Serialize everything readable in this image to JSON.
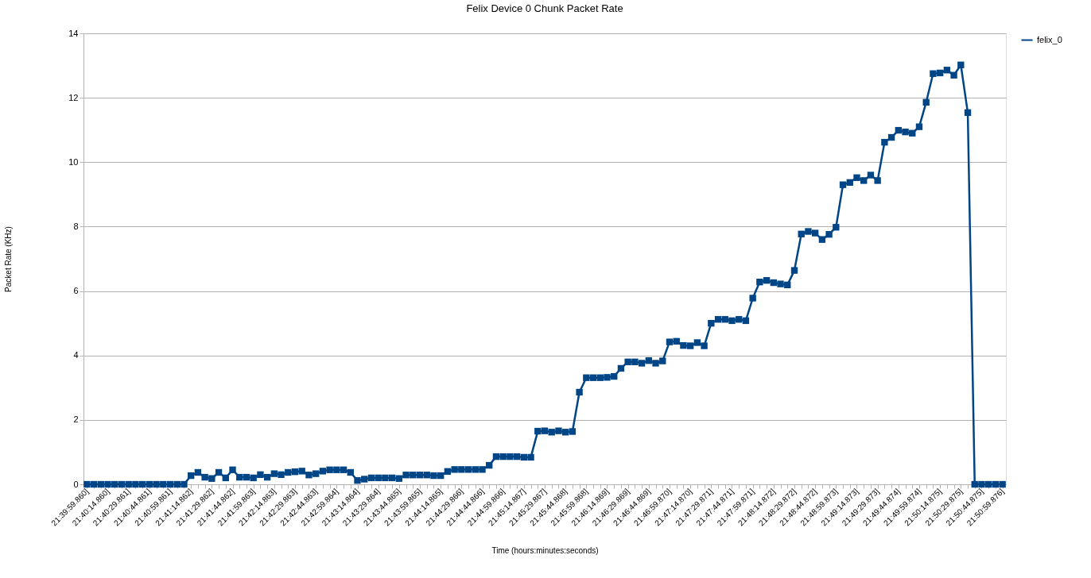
{
  "chart_data": {
    "type": "line",
    "title": "Felix Device 0 Chunk Packet Rate",
    "xlabel": "Time (hours:minutes:seconds)",
    "ylabel": "Packet Rate (KHz)",
    "categories": [
      "21:39:59.860]",
      null,
      null,
      "21:40:14.860]",
      null,
      null,
      "21:40:29.861]",
      null,
      null,
      "21:40:44.861]",
      null,
      null,
      "21:40:59.861]",
      null,
      null,
      "21:41:14.862]",
      null,
      null,
      "21:41:29.862]",
      null,
      null,
      "21:41:44.862]",
      null,
      null,
      "21:41:59.863]",
      null,
      null,
      "21:42:14.863]",
      null,
      null,
      "21:42:29.863]",
      null,
      null,
      "21:42:44.863]",
      null,
      null,
      "21:42:59.864]",
      null,
      null,
      "21:43:14.864]",
      null,
      null,
      "21:43:29.864]",
      null,
      null,
      "21:43:44.865]",
      null,
      null,
      "21:43:59.865]",
      null,
      null,
      "21:44:14.865]",
      null,
      null,
      "21:44:29.866]",
      null,
      null,
      "21:44:44.866]",
      null,
      null,
      "21:44:59.866]",
      null,
      null,
      "21:45:14.867]",
      null,
      null,
      "21:45:29.867]",
      null,
      null,
      "21:45:44.868]",
      null,
      null,
      "21:45:59.868]",
      null,
      null,
      "21:46:14.869]",
      null,
      null,
      "21:46:29.869]",
      null,
      null,
      "21:46:44.869]",
      null,
      null,
      "21:46:59.870]",
      null,
      null,
      "21:47:14.870]",
      null,
      null,
      "21:47:29.871]",
      null,
      null,
      "21:47:44.871]",
      null,
      null,
      "21:47:59.871]",
      null,
      null,
      "21:48:14.872]",
      null,
      null,
      "21:48:29.872]",
      null,
      null,
      "21:48:44.872]",
      null,
      null,
      "21:48:59.873]",
      null,
      null,
      "21:49:14.873]",
      null,
      null,
      "21:49:29.873]",
      null,
      null,
      "21:49:44.874]",
      null,
      null,
      "21:49:59.874]",
      null,
      null,
      "21:50:14.875]",
      null,
      null,
      "21:50:29.875]",
      null,
      null,
      "21:50:44.875]",
      null,
      null,
      "21:50:59.876]"
    ],
    "series": [
      {
        "name": "felix_0",
        "color": "#004586",
        "values": [
          0,
          0,
          0,
          0,
          0,
          0,
          0,
          0,
          0,
          0,
          0,
          0,
          0,
          0,
          0,
          0.27,
          0.37,
          0.22,
          0.18,
          0.37,
          0.2,
          0.45,
          0.22,
          0.22,
          0.2,
          0.3,
          0.22,
          0.33,
          0.3,
          0.37,
          0.39,
          0.41,
          0.29,
          0.33,
          0.41,
          0.45,
          0.45,
          0.45,
          0.37,
          0.12,
          0.16,
          0.2,
          0.2,
          0.2,
          0.2,
          0.18,
          0.29,
          0.29,
          0.29,
          0.29,
          0.27,
          0.27,
          0.4,
          0.46,
          0.46,
          0.46,
          0.46,
          0.46,
          0.59,
          0.86,
          0.86,
          0.86,
          0.86,
          0.84,
          0.84,
          1.65,
          1.66,
          1.62,
          1.66,
          1.62,
          1.64,
          2.86,
          3.31,
          3.31,
          3.31,
          3.32,
          3.35,
          3.6,
          3.8,
          3.8,
          3.76,
          3.84,
          3.76,
          3.83,
          4.42,
          4.44,
          4.31,
          4.3,
          4.4,
          4.3,
          5.0,
          5.12,
          5.12,
          5.08,
          5.12,
          5.08,
          5.78,
          6.28,
          6.33,
          6.26,
          6.22,
          6.19,
          6.64,
          7.77,
          7.85,
          7.8,
          7.6,
          7.76,
          7.98,
          9.3,
          9.37,
          9.52,
          9.43,
          9.6,
          9.43,
          10.62,
          10.77,
          10.99,
          10.94,
          10.9,
          11.1,
          11.86,
          12.75,
          12.77,
          12.86,
          12.7,
          13.02,
          11.54,
          0,
          0,
          0,
          0,
          0
        ]
      }
    ],
    "ylim": [
      0,
      14
    ],
    "yticks": [
      0,
      2,
      4,
      6,
      8,
      10,
      12,
      14
    ],
    "grid": "y",
    "legend": "right",
    "marker": "square",
    "line_style": "solid"
  }
}
